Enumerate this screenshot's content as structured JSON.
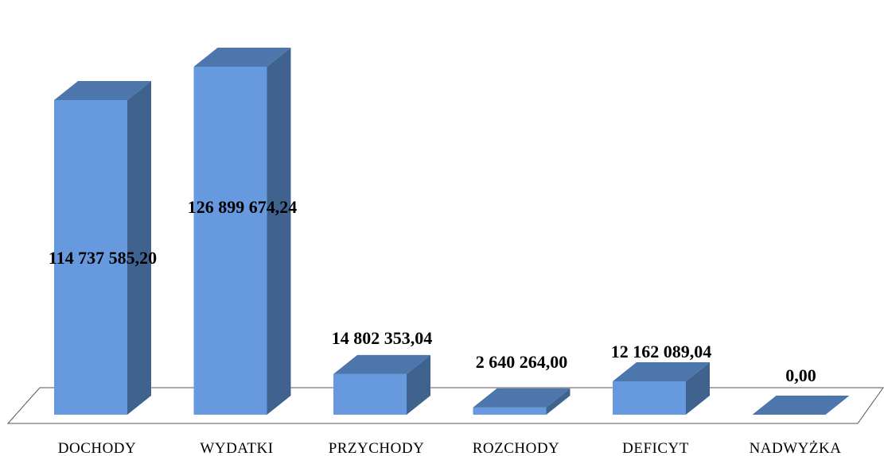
{
  "chart_data": {
    "type": "bar",
    "categories": [
      "DOCHODY",
      "WYDATKI",
      "PRZYCHODY",
      "ROZCHODY",
      "DEFICYT",
      "NADWYŻKA"
    ],
    "values": [
      114737585.2,
      126899674.24,
      14802353.04,
      2640264.0,
      12162089.04,
      0.0
    ],
    "value_labels": [
      "114 737 585,20",
      "126 899 674,24",
      "14 802 353,04",
      "2 640 264,00",
      "12 162 089,04",
      "0,00"
    ],
    "title": "",
    "xlabel": "",
    "ylabel": "",
    "ylim": [
      0,
      130000000
    ],
    "grid": false,
    "legend": "none",
    "three_d": true,
    "colors": {
      "bar_front": "#6699dd",
      "bar_side": "#40628f",
      "bar_top": "#4d76ad",
      "floor_edge": "#555555"
    }
  }
}
